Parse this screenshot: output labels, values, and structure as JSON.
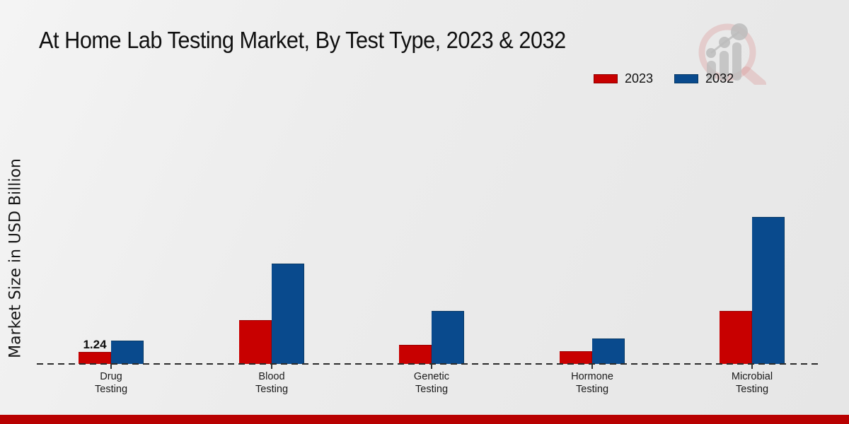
{
  "title": "At Home Lab Testing Market, By Test Type, 2023 & 2032",
  "y_axis_label": "Market Size in USD Billion",
  "legend": {
    "items": [
      {
        "label": "2023",
        "color": "#c80000",
        "border": "#8f0000"
      },
      {
        "label": "2032",
        "color": "#094a8d",
        "border": "#093a66"
      }
    ]
  },
  "chart_data": {
    "type": "bar",
    "title": "At Home Lab Testing Market, By Test Type, 2023 & 2032",
    "ylabel": "Market Size in USD Billion",
    "categories": [
      "Drug Testing",
      "Blood Testing",
      "Genetic Testing",
      "Hormone Testing",
      "Microbial Testing"
    ],
    "category_label_lines": [
      [
        "Drug",
        "Testing"
      ],
      [
        "Blood",
        "Testing"
      ],
      [
        "Genetic",
        "Testing"
      ],
      [
        "Hormone",
        "Testing"
      ],
      [
        "Microbial",
        "Testing"
      ]
    ],
    "series": [
      {
        "name": "2023",
        "color": "#c80000",
        "border": "#9a0000",
        "values": [
          1.24,
          4.5,
          2.0,
          1.3,
          5.5
        ]
      },
      {
        "name": "2032",
        "color": "#094a8d",
        "border": "#083a66",
        "values": [
          2.4,
          10.4,
          5.5,
          2.6,
          15.2
        ]
      }
    ],
    "bar_value_labels": [
      {
        "series_index": 0,
        "category_index": 0,
        "text": "1.24"
      }
    ],
    "ylim": [
      0,
      16
    ],
    "grid": false,
    "legend_position": "top-right",
    "baseline_style": "dashed"
  },
  "colors": {
    "axis_line": "#2b2b2b",
    "footer_bar": "#b80000",
    "watermark_ring": "#d98f8f",
    "watermark_bars": "#bdbdbd"
  }
}
